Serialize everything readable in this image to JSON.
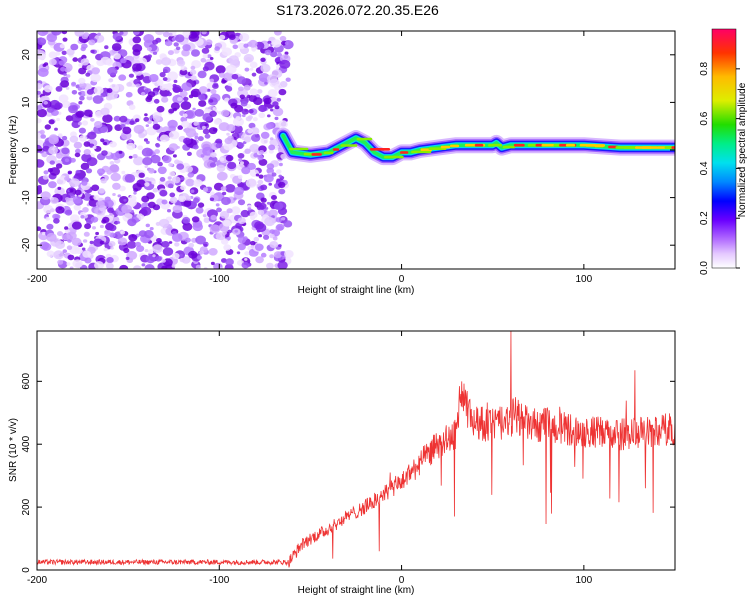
{
  "title": "S173.2026.072.20.35.E26",
  "spectrogram": {
    "type": "heatmap",
    "xlabel": "Height of straight line (km)",
    "ylabel": "Frequency (Hz)",
    "xlim": [
      -200,
      150
    ],
    "ylim": [
      -25,
      25
    ],
    "xticks": [
      -200,
      -100,
      0,
      100
    ],
    "yticks": [
      -20,
      -10,
      0,
      10,
      20
    ],
    "noise_region_end_km": -65,
    "line_trace": {
      "x": [
        -65,
        -60,
        -50,
        -40,
        -30,
        -25,
        -20,
        -15,
        -10,
        -5,
        0,
        5,
        10,
        20,
        30,
        50,
        52,
        55,
        60,
        80,
        100,
        120,
        150
      ],
      "y": [
        3,
        -0.5,
        -1,
        -0.5,
        1.5,
        2.5,
        1.5,
        -0.5,
        -1.5,
        -1.5,
        -0.5,
        -0.5,
        0,
        0.5,
        1,
        1,
        1.5,
        0.5,
        1,
        1,
        1,
        0.5,
        0.5
      ]
    },
    "colorbar": {
      "label": "Normalized spectral amplitude",
      "ticks": [
        0.0,
        0.2,
        0.4,
        0.6,
        0.8
      ],
      "range": [
        0,
        0.96
      ]
    }
  },
  "snr": {
    "type": "line",
    "xlabel": "Height of straight line (km)",
    "ylabel": "SNR (10 * v/v)",
    "xlim": [
      -200,
      150
    ],
    "ylim": [
      0,
      760
    ],
    "xticks": [
      -200,
      -100,
      0,
      100
    ],
    "yticks": [
      0,
      200,
      400,
      600
    ],
    "line_color": "#ee3333",
    "envelope": {
      "x": [
        -200,
        -62,
        -60,
        -55,
        -50,
        -40,
        -30,
        -20,
        -10,
        0,
        10,
        20,
        30,
        32,
        35,
        40,
        50,
        60,
        62,
        70,
        80,
        100,
        120,
        150
      ],
      "y": [
        25,
        25,
        40,
        80,
        100,
        130,
        170,
        200,
        240,
        280,
        340,
        400,
        430,
        560,
        520,
        470,
        460,
        470,
        500,
        460,
        460,
        440,
        430,
        450
      ]
    },
    "peaks": [
      {
        "x": 33,
        "y": 600
      },
      {
        "x": 60,
        "y": 760
      },
      {
        "x": 128,
        "y": 635
      }
    ]
  }
}
